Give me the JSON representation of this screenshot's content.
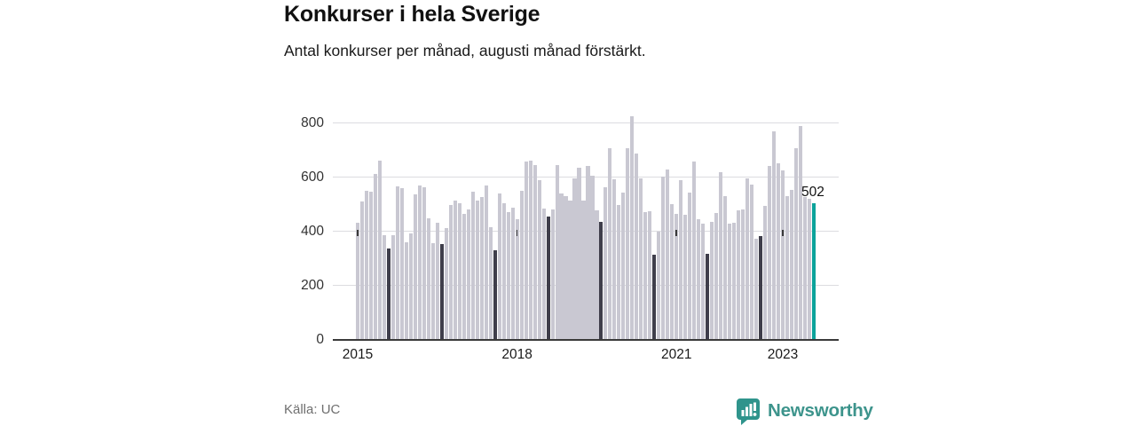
{
  "header": {
    "title": "Konkurser i hela Sverige",
    "subtitle": "Antal konkurser per månad, augusti månad förstärkt."
  },
  "footer": {
    "source": "Källa: UC",
    "brand": "Newsworthy"
  },
  "colors": {
    "bar_default": "#c9c8d2",
    "bar_august": "#3f3e4b",
    "bar_latest": "#0ca39b",
    "brand_teal": "#3d948c",
    "logo_tile": "#2f948c",
    "axis": "#3a3a3a",
    "grid": "#dcdce0",
    "source_text": "#6f6f6f"
  },
  "chart_data": {
    "type": "bar",
    "title": "Konkurser i hela Sverige",
    "subtitle": "Antal konkurser per månad, augusti månad förstärkt.",
    "xlabel": "",
    "ylabel": "",
    "legend": "none",
    "grid": "horizontal",
    "ylim": [
      0,
      845
    ],
    "y_ticks": [
      0,
      200,
      400,
      600,
      800
    ],
    "x_ticks": [
      {
        "month_index": 0,
        "label": "2015"
      },
      {
        "month_index": 36,
        "label": "2018"
      },
      {
        "month_index": 72,
        "label": "2021"
      },
      {
        "month_index": 96,
        "label": "2023"
      }
    ],
    "start_month": "2015-01",
    "end_month": "2023-08",
    "highlight_rule": "august-bars-dark, latest-bar-teal",
    "annotation": {
      "month_index": 103,
      "label": "502"
    },
    "values": [
      431,
      507,
      548,
      544,
      609,
      659,
      385,
      334,
      385,
      565,
      559,
      357,
      389,
      534,
      567,
      560,
      447,
      354,
      430,
      352,
      409,
      496,
      510,
      502,
      463,
      480,
      545,
      513,
      524,
      567,
      414,
      327,
      538,
      502,
      469,
      485,
      444,
      549,
      655,
      660,
      644,
      586,
      482,
      452,
      478,
      644,
      538,
      529,
      510,
      595,
      633,
      513,
      638,
      603,
      474,
      433,
      560,
      706,
      589,
      496,
      542,
      704,
      824,
      684,
      595,
      469,
      472,
      313,
      396,
      600,
      627,
      498,
      461,
      586,
      458,
      542,
      655,
      442,
      427,
      316,
      433,
      466,
      616,
      527,
      425,
      428,
      477,
      480,
      595,
      571,
      371,
      382,
      491,
      638,
      766,
      649,
      622,
      529,
      551,
      704,
      786,
      524,
      518,
      502
    ]
  }
}
